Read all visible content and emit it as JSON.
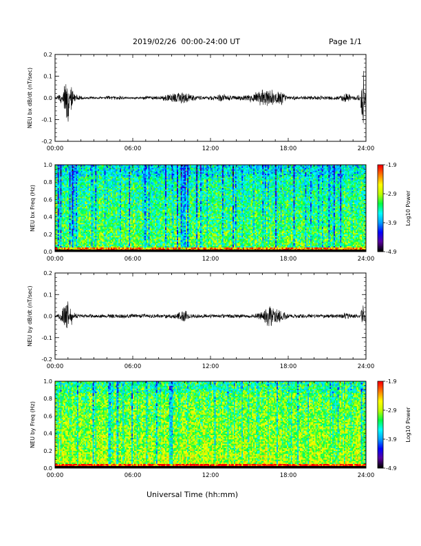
{
  "header": {
    "title": "2019/02/26  00:00-24:00 UT",
    "page": "Page 1/1"
  },
  "footer": {
    "xlabel": "Universal Time (hh:mm)"
  },
  "time_ticks": [
    "00:00",
    "06:00",
    "12:00",
    "18:00",
    "24:00"
  ],
  "colorbar": {
    "label": "Log10 Power",
    "ticks": [
      "-1.9",
      "-2.9",
      "-3.9",
      "-4.9"
    ],
    "range": [
      -4.9,
      -1.9
    ],
    "colors": [
      "#000000",
      "#5a00a0",
      "#0000ff",
      "#00a0ff",
      "#00ffff",
      "#00ff40",
      "#c0ff00",
      "#ffff00",
      "#ff8000",
      "#ff0000"
    ]
  },
  "chart_data": [
    {
      "type": "line",
      "ylabel": "NEU bx dB/dt (nT/sec)",
      "ylim": [
        -0.2,
        0.2
      ],
      "yticks": [
        "-0.2",
        "-0.1",
        "0.0",
        "0.1",
        "0.2"
      ],
      "xlim": [
        0,
        24
      ],
      "series": [
        {
          "x": [
            0,
            0.5,
            1.0,
            1.2,
            1.5,
            2.0,
            3,
            4,
            5,
            6,
            7,
            8,
            9,
            9.5,
            10.0,
            10.5,
            11,
            12,
            13,
            14,
            15,
            16,
            16.5,
            17.0,
            17.5,
            18,
            19,
            20,
            21,
            22,
            22.5,
            23,
            23.5,
            23.8,
            24
          ],
          "y": [
            0,
            0.03,
            -0.2,
            0.07,
            0.02,
            0.01,
            0,
            0.01,
            0.01,
            0,
            0.01,
            0.01,
            0.02,
            0.03,
            0.03,
            0.02,
            0.01,
            0.01,
            0.02,
            0.01,
            0.02,
            0.04,
            0.05,
            0.03,
            0.04,
            0.01,
            0.01,
            0.01,
            0.01,
            0.01,
            0.03,
            0.01,
            0.02,
            -0.2,
            0.12
          ]
        }
      ]
    },
    {
      "type": "heatmap",
      "ylabel": "NEU bx Freq (Hz)",
      "ylim": [
        0,
        1
      ],
      "yticks": [
        "0.0",
        "0.2",
        "0.4",
        "0.6",
        "0.8",
        "1.0"
      ],
      "xlim": [
        0,
        24
      ],
      "columns": 240,
      "rows": 60,
      "base_log_power": -3.6,
      "seed": 7
    },
    {
      "type": "line",
      "ylabel": "NEU by dB/dt (nT/sec)",
      "ylim": [
        -0.2,
        0.2
      ],
      "yticks": [
        "-0.2",
        "-0.1",
        "0.0",
        "0.1",
        "0.2"
      ],
      "xlim": [
        0,
        24
      ],
      "series": [
        {
          "x": [
            0,
            0.5,
            1.0,
            1.2,
            1.5,
            2.0,
            3,
            4,
            5,
            6,
            7,
            8,
            9,
            9.5,
            10.0,
            10.5,
            11,
            12,
            13,
            14,
            15,
            16,
            16.5,
            17.0,
            17.5,
            18,
            19,
            20,
            21,
            22,
            22.5,
            23,
            23.5,
            23.8,
            24
          ],
          "y": [
            0,
            0.03,
            0.09,
            -0.07,
            0.02,
            0.01,
            0.01,
            0.01,
            0.01,
            0.01,
            0.01,
            0.01,
            0.01,
            0.02,
            0.03,
            0.01,
            0.01,
            0.01,
            0.01,
            0.01,
            0.01,
            0.02,
            0.06,
            0.04,
            0.03,
            0.01,
            0.01,
            0.01,
            0.01,
            0.01,
            0.02,
            0.01,
            0.01,
            -0.07,
            0.06
          ]
        }
      ]
    },
    {
      "type": "heatmap",
      "ylabel": "NEU by Freq (Hz)",
      "ylim": [
        0,
        1
      ],
      "yticks": [
        "0.0",
        "0.2",
        "0.4",
        "0.6",
        "0.8",
        "1.0"
      ],
      "xlim": [
        0,
        24
      ],
      "columns": 240,
      "rows": 60,
      "base_log_power": -3.3,
      "seed": 13
    }
  ]
}
